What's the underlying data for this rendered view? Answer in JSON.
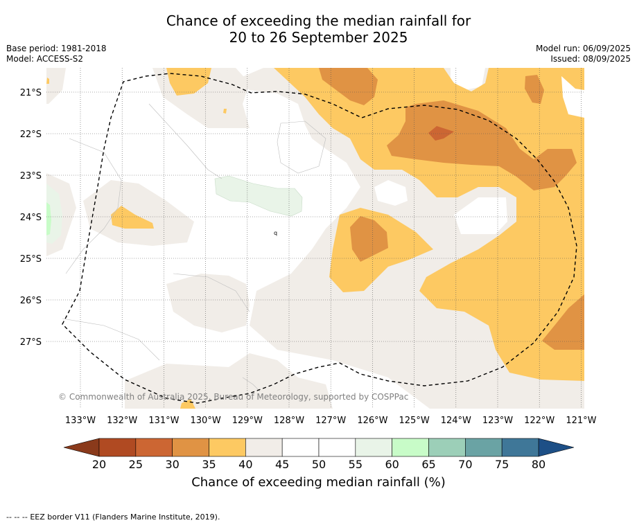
{
  "header": {
    "title_line1": "Chance of exceeding the median rainfall for",
    "title_line2": "20 to 26 September 2025",
    "base_period": "Base period: 1981-2018",
    "model": "Model: ACCESS-S2",
    "model_run": "Model run: 06/09/2025",
    "issued": "Issued: 08/09/2025"
  },
  "map": {
    "copyright": "© Commonwealth of Australia 2025, Bureau of Meteorology, supported by COSPPac",
    "lat_labels": [
      "21°S",
      "22°S",
      "23°S",
      "24°S",
      "25°S",
      "26°S",
      "27°S"
    ],
    "lon_labels": [
      "133°W",
      "132°W",
      "131°W",
      "130°W",
      "129°W",
      "128°W",
      "127°W",
      "126°W",
      "125°W",
      "124°W",
      "123°W",
      "122°W",
      "121°W"
    ],
    "contour_label": "q"
  },
  "colorbar": {
    "ticks": [
      "20",
      "25",
      "30",
      "35",
      "40",
      "45",
      "50",
      "55",
      "60",
      "65",
      "70",
      "75",
      "80"
    ],
    "label": "Chance of exceeding median rainfall (%)",
    "colors": {
      "lt20": "#8a3a1b",
      "20-25": "#b04a22",
      "25-30": "#cc6633",
      "30-35": "#e09344",
      "35-40": "#fdc962",
      "40-45": "#f1ede8",
      "45-50": "#ffffff",
      "50-55": "#ffffff",
      "55-60": "#e9f4e8",
      "60-65": "#c8fcc8",
      "65-70": "#9ccfb8",
      "70-75": "#6aa3a4",
      "75-80": "#3f7798",
      "gt80": "#1d4f86"
    }
  },
  "footer": {
    "legend_symbol": "--  --  --",
    "legend_text": "EEZ border V11 (Flanders Marine Institute, 2019)."
  }
}
